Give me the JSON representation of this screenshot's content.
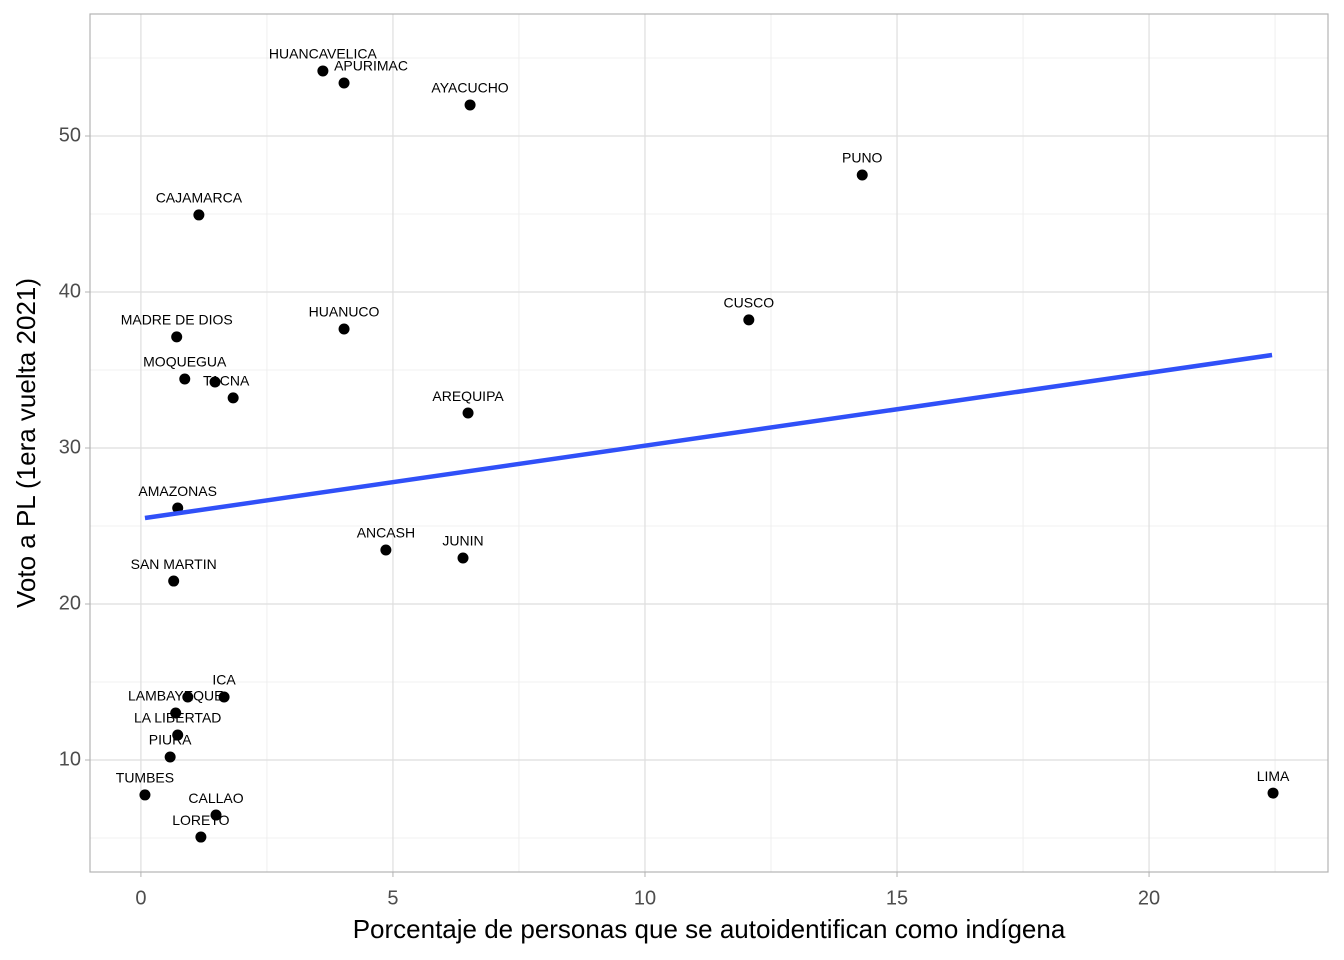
{
  "chart_data": {
    "type": "scatter",
    "x_label": "Porcentaje de personas que se autoidentifican como indígena",
    "y_label": "Voto a PL (1era vuelta 2021)",
    "labels": [
      "HUANCAVELICA",
      "APURIMAC",
      "AYACUCHO",
      "PUNO",
      "CAJAMARCA",
      "MADRE DE DIOS",
      "HUANUCO",
      "CUSCO",
      "MOQUEGUA",
      "TACNA",
      null,
      "AREQUIPA",
      "AMAZONAS",
      "ANCASH",
      "JUNIN",
      "SAN MARTIN",
      "ICA",
      null,
      "LAMBAYEQUE",
      "LA LIBERTAD",
      "PIURA",
      "TUMBES",
      "CALLAO",
      "LORETO",
      "LIMA"
    ],
    "x": [
      3.61,
      4.03,
      6.53,
      14.31,
      1.15,
      0.71,
      4.03,
      12.06,
      0.87,
      1.83,
      1.47,
      6.49,
      0.73,
      4.86,
      6.39,
      0.65,
      1.65,
      0.93,
      0.69,
      0.73,
      0.58,
      0.08,
      1.49,
      1.19,
      22.46
    ],
    "values": [
      54.17,
      53.4,
      51.99,
      47.5,
      44.94,
      37.12,
      37.63,
      38.21,
      34.42,
      33.21,
      34.23,
      32.24,
      26.15,
      23.46,
      22.95,
      21.47,
      14.04,
      14.04,
      13.01,
      11.6,
      10.19,
      7.76,
      6.47,
      5.06,
      7.88
    ],
    "color": "#000000",
    "trend": {
      "x": [
        0.08,
        22.44
      ],
      "y": [
        25.51,
        35.96
      ],
      "color": "#3050f8"
    },
    "xlim": [
      -1.01,
      23.55
    ],
    "ylim": [
      2.82,
      57.82
    ],
    "xticks": [
      0,
      5,
      10,
      15,
      20
    ],
    "yticks": [
      10,
      20,
      30,
      40,
      50
    ],
    "x_minor_grid": [
      2.5,
      7.5,
      12.5,
      17.5,
      22.5
    ],
    "y_minor_grid": [
      5,
      15,
      25,
      35,
      45,
      55
    ],
    "grid": true
  }
}
